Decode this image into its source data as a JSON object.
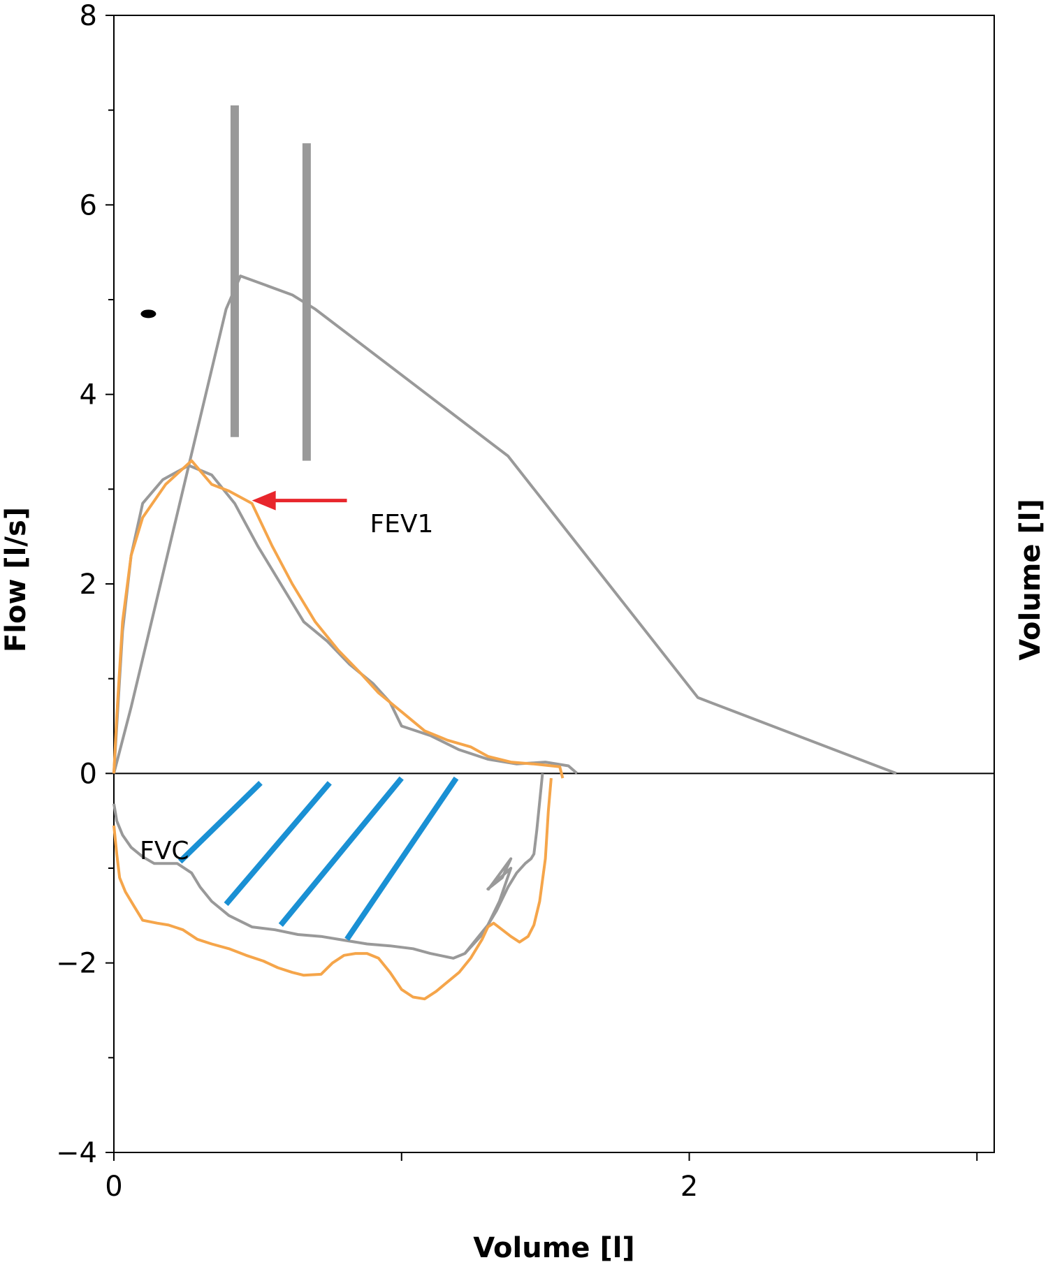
{
  "chart_data": {
    "type": "line",
    "title": "",
    "xlabel": "Volume [l]",
    "ylabel": "Flow [l/s]",
    "y2label": "Volume [l]",
    "xlim": [
      0,
      3.06
    ],
    "ylim": [
      -4,
      8
    ],
    "xticks": [
      0,
      1,
      2,
      3
    ],
    "xtick_labels": [
      "0",
      "",
      "2",
      ""
    ],
    "yticks": [
      -4,
      -3,
      -2,
      -1,
      0,
      1,
      2,
      3,
      4,
      5,
      6,
      7,
      8
    ],
    "ytick_labels": [
      "−4",
      "",
      "−2",
      "",
      "0",
      "",
      "2",
      "",
      "4",
      "",
      "6",
      "",
      "8"
    ],
    "grid": false,
    "colors": {
      "grey": "#999999",
      "orange": "#f5a54a",
      "blue": "#1a90d4",
      "red": "#e8262c",
      "axis": "#000000"
    },
    "series": [
      {
        "color": "grey",
        "points": [
          [
            0,
            0
          ],
          [
            0.06,
            0.7
          ],
          [
            0.39,
            4.9
          ],
          [
            0.44,
            5.25
          ],
          [
            0.62,
            5.05
          ],
          [
            0.7,
            4.9
          ],
          [
            1.37,
            3.35
          ],
          [
            2.03,
            0.8
          ],
          [
            2.72,
            0
          ]
        ]
      },
      {
        "color": "grey",
        "points": [
          [
            0,
            0
          ],
          [
            0.01,
            0.5
          ],
          [
            0.03,
            1.5
          ],
          [
            0.06,
            2.3
          ],
          [
            0.1,
            2.85
          ],
          [
            0.17,
            3.1
          ],
          [
            0.26,
            3.25
          ],
          [
            0.34,
            3.15
          ],
          [
            0.42,
            2.85
          ],
          [
            0.5,
            2.4
          ],
          [
            0.58,
            2.0
          ],
          [
            0.66,
            1.6
          ],
          [
            0.74,
            1.4
          ],
          [
            0.82,
            1.15
          ],
          [
            0.9,
            0.95
          ],
          [
            0.96,
            0.75
          ],
          [
            1.0,
            0.5
          ],
          [
            1.1,
            0.4
          ],
          [
            1.2,
            0.25
          ],
          [
            1.3,
            0.15
          ],
          [
            1.4,
            0.1
          ],
          [
            1.5,
            0.12
          ],
          [
            1.58,
            0.08
          ],
          [
            1.61,
            0
          ]
        ]
      },
      {
        "color": "orange",
        "points": [
          [
            0,
            0
          ],
          [
            0.01,
            0.6
          ],
          [
            0.03,
            1.6
          ],
          [
            0.06,
            2.3
          ],
          [
            0.1,
            2.7
          ],
          [
            0.18,
            3.05
          ],
          [
            0.27,
            3.3
          ],
          [
            0.34,
            3.05
          ],
          [
            0.4,
            2.98
          ],
          [
            0.48,
            2.85
          ],
          [
            0.55,
            2.4
          ],
          [
            0.62,
            2.0
          ],
          [
            0.7,
            1.6
          ],
          [
            0.78,
            1.3
          ],
          [
            0.86,
            1.05
          ],
          [
            0.92,
            0.85
          ],
          [
            1.0,
            0.65
          ],
          [
            1.08,
            0.45
          ],
          [
            1.16,
            0.35
          ],
          [
            1.24,
            0.28
          ],
          [
            1.3,
            0.18
          ],
          [
            1.38,
            0.12
          ],
          [
            1.46,
            0.1
          ],
          [
            1.55,
            0.07
          ],
          [
            1.56,
            -0.05
          ]
        ]
      },
      {
        "color": "grey",
        "points": [
          [
            0,
            -0.32
          ],
          [
            0.01,
            -0.5
          ],
          [
            0.03,
            -0.65
          ],
          [
            0.06,
            -0.78
          ],
          [
            0.1,
            -0.88
          ],
          [
            0.14,
            -0.95
          ],
          [
            0.18,
            -0.95
          ],
          [
            0.22,
            -0.95
          ],
          [
            0.27,
            -1.05
          ],
          [
            0.3,
            -1.2
          ],
          [
            0.34,
            -1.35
          ],
          [
            0.4,
            -1.5
          ],
          [
            0.48,
            -1.62
          ],
          [
            0.56,
            -1.65
          ],
          [
            0.64,
            -1.7
          ],
          [
            0.72,
            -1.72
          ],
          [
            0.8,
            -1.76
          ],
          [
            0.88,
            -1.8
          ],
          [
            0.96,
            -1.82
          ],
          [
            1.04,
            -1.85
          ],
          [
            1.1,
            -1.9
          ],
          [
            1.18,
            -1.95
          ],
          [
            1.22,
            -1.9
          ],
          [
            1.26,
            -1.75
          ],
          [
            1.3,
            -1.6
          ],
          [
            1.34,
            -1.35
          ],
          [
            1.38,
            -1.0
          ],
          [
            1.3,
            -1.22
          ],
          [
            1.35,
            -1.1
          ],
          [
            1.38,
            -0.9
          ],
          [
            1.3,
            -1.23
          ]
        ]
      },
      {
        "color": "grey",
        "points": [
          [
            1.22,
            -1.9
          ],
          [
            1.28,
            -1.7
          ],
          [
            1.33,
            -1.45
          ],
          [
            1.37,
            -1.2
          ],
          [
            1.4,
            -1.05
          ],
          [
            1.43,
            -0.95
          ],
          [
            1.45,
            -0.9
          ],
          [
            1.46,
            -0.85
          ],
          [
            1.47,
            -0.6
          ],
          [
            1.48,
            -0.3
          ],
          [
            1.49,
            0
          ]
        ]
      },
      {
        "color": "orange",
        "points": [
          [
            0,
            -0.55
          ],
          [
            0.01,
            -0.85
          ],
          [
            0.02,
            -1.1
          ],
          [
            0.04,
            -1.25
          ],
          [
            0.07,
            -1.4
          ],
          [
            0.1,
            -1.55
          ],
          [
            0.15,
            -1.58
          ],
          [
            0.19,
            -1.6
          ],
          [
            0.24,
            -1.65
          ],
          [
            0.29,
            -1.75
          ],
          [
            0.34,
            -1.8
          ],
          [
            0.4,
            -1.85
          ],
          [
            0.46,
            -1.92
          ],
          [
            0.52,
            -1.98
          ],
          [
            0.57,
            -2.05
          ],
          [
            0.62,
            -2.1
          ],
          [
            0.66,
            -2.13
          ],
          [
            0.72,
            -2.12
          ],
          [
            0.76,
            -2.0
          ],
          [
            0.8,
            -1.92
          ],
          [
            0.84,
            -1.9
          ],
          [
            0.88,
            -1.9
          ],
          [
            0.92,
            -1.95
          ],
          [
            0.96,
            -2.1
          ],
          [
            1.0,
            -2.28
          ],
          [
            1.04,
            -2.36
          ],
          [
            1.08,
            -2.38
          ],
          [
            1.12,
            -2.3
          ],
          [
            1.16,
            -2.2
          ],
          [
            1.2,
            -2.1
          ],
          [
            1.24,
            -1.95
          ],
          [
            1.28,
            -1.75
          ],
          [
            1.3,
            -1.62
          ],
          [
            1.32,
            -1.58
          ],
          [
            1.35,
            -1.65
          ],
          [
            1.38,
            -1.72
          ],
          [
            1.41,
            -1.78
          ],
          [
            1.44,
            -1.72
          ],
          [
            1.46,
            -1.6
          ],
          [
            1.48,
            -1.35
          ],
          [
            1.5,
            -0.9
          ],
          [
            1.51,
            -0.4
          ],
          [
            1.52,
            -0.05
          ]
        ]
      }
    ],
    "vertical_bars": [
      {
        "x": 0.42,
        "y_from": 3.55,
        "y_to": 7.05,
        "color": "grey"
      },
      {
        "x": 0.67,
        "y_from": 3.3,
        "y_to": 6.65,
        "color": "grey"
      }
    ],
    "hatch_lines": [
      {
        "from": [
          0.23,
          -0.93
        ],
        "to": [
          0.51,
          -0.1
        ]
      },
      {
        "from": [
          0.39,
          -1.38
        ],
        "to": [
          0.75,
          -0.1
        ]
      },
      {
        "from": [
          0.58,
          -1.6
        ],
        "to": [
          1.0,
          -0.05
        ]
      },
      {
        "from": [
          0.81,
          -1.75
        ],
        "to": [
          1.19,
          -0.05
        ]
      }
    ],
    "dot": {
      "x": 0.12,
      "y": 4.85
    },
    "annotations": [
      {
        "text": "FEV1",
        "x": 0.89,
        "y": 2.65
      },
      {
        "text": "FVC",
        "x": 0.09,
        "y": -0.8
      }
    ],
    "arrow": {
      "from": [
        0.81,
        2.88
      ],
      "to": [
        0.48,
        2.88
      ],
      "color": "red"
    }
  }
}
